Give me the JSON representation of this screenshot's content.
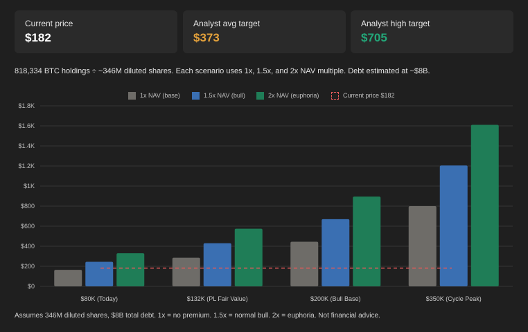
{
  "cards": [
    {
      "label": "Current price",
      "value": "$182",
      "color": "#ffffff"
    },
    {
      "label": "Analyst avg target",
      "value": "$373",
      "color": "#e3a13b"
    },
    {
      "label": "Analyst high target",
      "value": "$705",
      "color": "#23a779"
    }
  ],
  "description": "818,334 BTC holdings ÷ ~346M diluted shares. Each scenario uses 1x, 1.5x, and 2x NAV multiple. Debt estimated at ~$8B.",
  "footnote": "Assumes 346M diluted shares, $8B total debt. 1x = no premium. 1.5x = normal bull. 2x = euphoria. Not financial advice.",
  "legend": [
    {
      "label": "1x NAV (base)",
      "color": "#6e6c68",
      "style": "solid"
    },
    {
      "label": "1.5x NAV (bull)",
      "color": "#3a6fb2",
      "style": "solid"
    },
    {
      "label": "2x NAV (euphoria)",
      "color": "#1f7d57",
      "style": "solid"
    },
    {
      "label": "Current price $182",
      "color": "#e05a5a",
      "style": "dashed"
    }
  ],
  "chart_data": {
    "type": "bar",
    "categories": [
      "$80K (Today)",
      "$132K (PL Fair Value)",
      "$200K (Bull Base)",
      "$350K (Cycle Peak)"
    ],
    "series": [
      {
        "name": "1x NAV (base)",
        "values": [
          165,
          285,
          445,
          800
        ],
        "color": "#6e6c68"
      },
      {
        "name": "1.5x NAV (bull)",
        "values": [
          245,
          430,
          670,
          1205
        ],
        "color": "#3a6fb2"
      },
      {
        "name": "2x NAV (euphoria)",
        "values": [
          330,
          575,
          895,
          1610
        ],
        "color": "#1f7d57"
      }
    ],
    "reference_line": {
      "label": "Current price $182",
      "value": 182,
      "color": "#e05a5a",
      "style": "dashed"
    },
    "ylim": [
      0,
      1800
    ],
    "yticks": [
      0,
      200,
      400,
      600,
      800,
      1000,
      1200,
      1400,
      1600,
      1800
    ],
    "ytick_labels": [
      "$0",
      "$200",
      "$400",
      "$600",
      "$800",
      "$1K",
      "$1.2K",
      "$1.4K",
      "$1.6K",
      "$1.8K"
    ],
    "grid": true,
    "legend_position": "top-center"
  }
}
